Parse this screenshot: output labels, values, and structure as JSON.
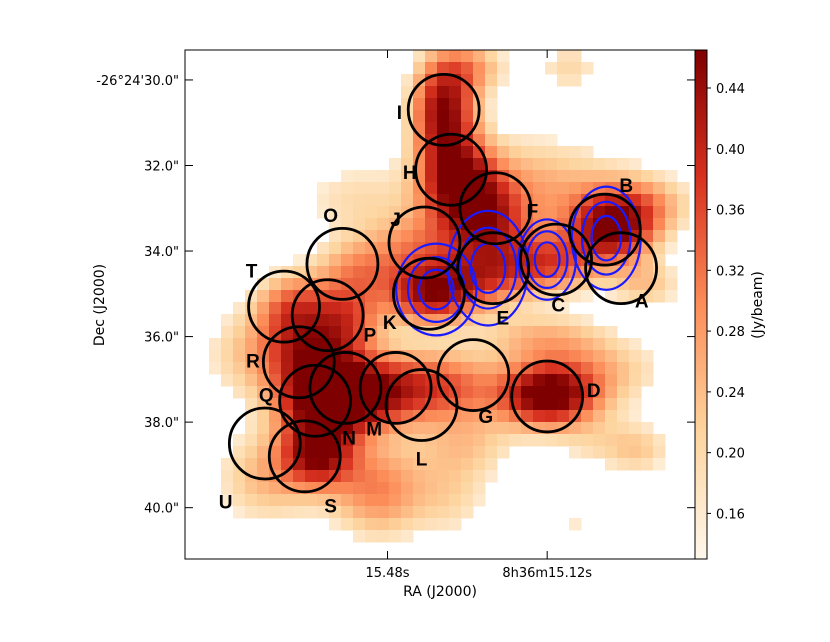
{
  "chart_data": {
    "type": "heatmap",
    "title": "",
    "xlabel": "RA (J2000)",
    "ylabel": "Dec (J2000)",
    "colorbar_label": "(Jy/beam)",
    "colorbar_range": [
      0.13,
      0.465
    ],
    "colorbar_ticks": [
      {
        "value": 0.44,
        "label": "0.44"
      },
      {
        "value": 0.4,
        "label": "0.40"
      },
      {
        "value": 0.36,
        "label": "0.36"
      },
      {
        "value": 0.32,
        "label": "0.32"
      },
      {
        "value": 0.28,
        "label": "0.28"
      },
      {
        "value": 0.24,
        "label": "0.24"
      },
      {
        "value": 0.2,
        "label": "0.20"
      },
      {
        "value": 0.16,
        "label": "0.16"
      }
    ],
    "x_range_arcsec": [
      -4.9,
      2.0
    ],
    "y_range_arcsec": [
      29.3,
      41.2
    ],
    "x_ticks": [
      {
        "value": -2.16,
        "label": "15.48s"
      },
      {
        "value": 0.0,
        "label": "8h36m15.12s"
      }
    ],
    "y_ticks": [
      {
        "value": 30.0,
        "label": "-26°24'30.0\""
      },
      {
        "value": 32.0,
        "label": "32.0\""
      },
      {
        "value": 34.0,
        "label": "34.0\""
      },
      {
        "value": 36.0,
        "label": "36.0\""
      },
      {
        "value": 38.0,
        "label": "38.0\""
      },
      {
        "value": 40.0,
        "label": "40.0\""
      }
    ],
    "colors": {
      "stops": [
        "#fff7ec",
        "#fdd49e",
        "#fc8d59",
        "#d7301f",
        "#7f0000"
      ],
      "contour": "#1a1aff",
      "circle": "#000000"
    },
    "blobs": [
      {
        "x": -1.4,
        "y": 30.7,
        "sx": 0.3,
        "sy": 0.85,
        "a": 0.95
      },
      {
        "x": -1.2,
        "y": 32.4,
        "sx": 0.35,
        "sy": 0.7,
        "a": 0.85
      },
      {
        "x": -0.8,
        "y": 33.3,
        "sx": 0.35,
        "sy": 0.6,
        "a": 0.55
      },
      {
        "x": -1.0,
        "y": 29.7,
        "sx": 0.35,
        "sy": 0.45,
        "a": 0.35
      },
      {
        "x": 0.3,
        "y": 29.7,
        "sx": 0.3,
        "sy": 0.45,
        "a": 0.25
      },
      {
        "x": 0.9,
        "y": 33.5,
        "sx": 0.4,
        "sy": 0.55,
        "a": 0.85
      },
      {
        "x": 0.0,
        "y": 34.3,
        "sx": 0.5,
        "sy": 0.5,
        "a": 0.6
      },
      {
        "x": -0.9,
        "y": 34.6,
        "sx": 0.45,
        "sy": 0.55,
        "a": 0.55
      },
      {
        "x": -1.6,
        "y": 35.0,
        "sx": 0.4,
        "sy": 0.5,
        "a": 0.85
      },
      {
        "x": -1.7,
        "y": 33.8,
        "sx": 0.45,
        "sy": 0.5,
        "a": 0.35
      },
      {
        "x": -0.2,
        "y": 32.6,
        "sx": 0.9,
        "sy": 0.9,
        "a": 0.4
      },
      {
        "x": -2.6,
        "y": 32.8,
        "sx": 0.6,
        "sy": 0.7,
        "a": 0.22
      },
      {
        "x": 1.3,
        "y": 32.9,
        "sx": 0.5,
        "sy": 0.5,
        "a": 0.35
      },
      {
        "x": 0.0,
        "y": 37.4,
        "sx": 0.45,
        "sy": 0.5,
        "a": 1.0
      },
      {
        "x": 0.6,
        "y": 36.8,
        "sx": 0.7,
        "sy": 0.6,
        "a": 0.35
      },
      {
        "x": -2.7,
        "y": 35.5,
        "sx": 0.35,
        "sy": 0.6,
        "a": 0.55
      },
      {
        "x": -2.5,
        "y": 34.4,
        "sx": 0.45,
        "sy": 0.5,
        "a": 0.4
      },
      {
        "x": -3.45,
        "y": 35.3,
        "sx": 0.35,
        "sy": 0.55,
        "a": 0.55
      },
      {
        "x": -3.2,
        "y": 36.4,
        "sx": 0.45,
        "sy": 0.6,
        "a": 0.75
      },
      {
        "x": -3.0,
        "y": 37.5,
        "sx": 0.45,
        "sy": 0.55,
        "a": 0.9
      },
      {
        "x": -3.1,
        "y": 38.7,
        "sx": 0.35,
        "sy": 0.55,
        "a": 0.9
      },
      {
        "x": -2.5,
        "y": 37.4,
        "sx": 0.5,
        "sy": 0.55,
        "a": 0.55
      },
      {
        "x": -2.3,
        "y": 39.6,
        "sx": 0.45,
        "sy": 0.8,
        "a": 0.5
      },
      {
        "x": -3.8,
        "y": 39.3,
        "sx": 0.5,
        "sy": 0.8,
        "a": 0.35
      },
      {
        "x": -1.9,
        "y": 37.1,
        "sx": 0.7,
        "sy": 0.6,
        "a": 0.45
      },
      {
        "x": -1.3,
        "y": 37.2,
        "sx": 0.5,
        "sy": 0.55,
        "a": 0.3
      },
      {
        "x": -1.1,
        "y": 38.5,
        "sx": 0.5,
        "sy": 0.6,
        "a": 0.28
      },
      {
        "x": -4.1,
        "y": 36.4,
        "sx": 0.45,
        "sy": 0.8,
        "a": 0.25
      },
      {
        "x": -1.3,
        "y": 39.8,
        "sx": 0.4,
        "sy": 0.7,
        "a": 0.22
      },
      {
        "x": 0.8,
        "y": 38.5,
        "sx": 0.5,
        "sy": 0.5,
        "a": 0.22
      },
      {
        "x": 1.3,
        "y": 38.7,
        "sx": 0.3,
        "sy": 0.4,
        "a": 0.18
      },
      {
        "x": -0.1,
        "y": 36.0,
        "sx": 0.6,
        "sy": 0.4,
        "a": 0.3
      },
      {
        "x": 1.35,
        "y": 34.8,
        "sx": 0.35,
        "sy": 0.4,
        "a": 0.3
      },
      {
        "x": 0.3,
        "y": 40.3,
        "sx": 0.2,
        "sy": 0.3,
        "a": 0.18
      }
    ],
    "contour_peaks": [
      {
        "x": -0.8,
        "y": 34.4,
        "sx": 0.35,
        "sy": 0.5
      },
      {
        "x": 0.0,
        "y": 34.2,
        "sx": 0.25,
        "sy": 0.35
      },
      {
        "x": 0.8,
        "y": 33.7,
        "sx": 0.3,
        "sy": 0.45
      },
      {
        "x": -1.5,
        "y": 34.9,
        "sx": 0.35,
        "sy": 0.4
      }
    ],
    "contour_levels": [
      0.3,
      0.55,
      0.8
    ],
    "circles": [
      {
        "label": "A",
        "x": 1.0,
        "y": 34.4,
        "r": 0.48,
        "lx": 1.28,
        "ly": 35.2
      },
      {
        "label": "B",
        "x": 0.78,
        "y": 33.5,
        "r": 0.48,
        "lx": 1.07,
        "ly": 32.5
      },
      {
        "label": "C",
        "x": 0.12,
        "y": 34.2,
        "r": 0.48,
        "lx": 0.15,
        "ly": 35.3
      },
      {
        "label": "D",
        "x": 0.0,
        "y": 37.4,
        "r": 0.48,
        "lx": 0.63,
        "ly": 37.3
      },
      {
        "label": "E",
        "x": -0.73,
        "y": 34.4,
        "r": 0.48,
        "lx": -0.6,
        "ly": 35.6
      },
      {
        "label": "F",
        "x": -0.7,
        "y": 33.0,
        "r": 0.48,
        "lx": -0.2,
        "ly": 33.1
      },
      {
        "label": "G",
        "x": -1.0,
        "y": 36.9,
        "r": 0.48,
        "lx": -0.83,
        "ly": 37.9
      },
      {
        "label": "H",
        "x": -1.3,
        "y": 32.1,
        "r": 0.48,
        "lx": -1.86,
        "ly": 32.2
      },
      {
        "label": "I",
        "x": -1.4,
        "y": 30.7,
        "r": 0.48,
        "lx": -2.0,
        "ly": 30.8
      },
      {
        "label": "J",
        "x": -1.66,
        "y": 33.8,
        "r": 0.48,
        "lx": -2.05,
        "ly": 33.3
      },
      {
        "label": "K",
        "x": -1.6,
        "y": 35.0,
        "r": 0.48,
        "lx": -2.13,
        "ly": 35.7
      },
      {
        "label": "L",
        "x": -1.7,
        "y": 37.6,
        "r": 0.48,
        "lx": -1.7,
        "ly": 38.9
      },
      {
        "label": "M",
        "x": -2.05,
        "y": 37.2,
        "r": 0.48,
        "lx": -2.34,
        "ly": 38.2
      },
      {
        "label": "N",
        "x": -2.73,
        "y": 37.2,
        "r": 0.48,
        "lx": -2.68,
        "ly": 38.4
      },
      {
        "label": "O",
        "x": -2.77,
        "y": 34.3,
        "r": 0.48,
        "lx": -2.93,
        "ly": 33.2
      },
      {
        "label": "P",
        "x": -2.97,
        "y": 35.5,
        "r": 0.48,
        "lx": -2.4,
        "ly": 36.0
      },
      {
        "label": "Q",
        "x": -3.14,
        "y": 37.5,
        "r": 0.48,
        "lx": -3.8,
        "ly": 37.4
      },
      {
        "label": "R",
        "x": -3.36,
        "y": 36.6,
        "r": 0.48,
        "lx": -3.98,
        "ly": 36.6
      },
      {
        "label": "S",
        "x": -3.28,
        "y": 38.8,
        "r": 0.48,
        "lx": -2.93,
        "ly": 40.0
      },
      {
        "label": "T",
        "x": -3.56,
        "y": 35.3,
        "r": 0.48,
        "lx": -4.0,
        "ly": 34.5
      },
      {
        "label": "U",
        "x": -3.82,
        "y": 38.5,
        "r": 0.48,
        "lx": -4.35,
        "ly": 39.9
      }
    ]
  }
}
